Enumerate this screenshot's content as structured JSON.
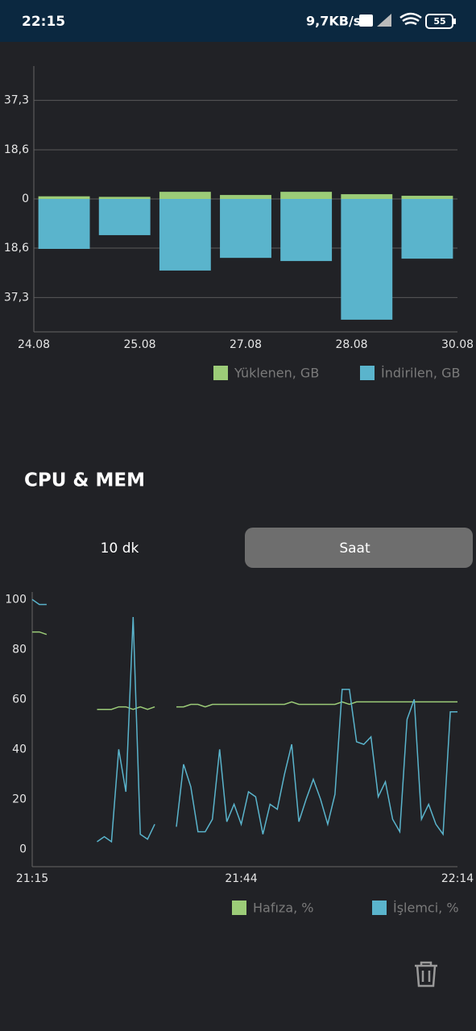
{
  "status_bar": {
    "time": "22:15",
    "speed": "9,7KB/s",
    "battery": "55"
  },
  "section_title": "CPU & MEM",
  "tabs": [
    {
      "label": "10 dk",
      "selected": false
    },
    {
      "label": "Saat",
      "selected": true
    }
  ],
  "chart_data": [
    {
      "type": "bar",
      "stacked": true,
      "x": [
        0,
        1,
        2,
        3,
        4,
        5,
        6
      ],
      "xlim": [
        -0.5,
        6.5
      ],
      "xticks": [
        {
          "value": -0.5,
          "label": "24.08"
        },
        {
          "value": 1.25,
          "label": "25.08"
        },
        {
          "value": 3,
          "label": "27.08"
        },
        {
          "value": 4.75,
          "label": "28.08"
        },
        {
          "value": 6.5,
          "label": "30.08"
        }
      ],
      "ylim": [
        -50.3,
        50.3
      ],
      "yticks": [
        {
          "value": 37.3,
          "label": "37,3"
        },
        {
          "value": 18.6,
          "label": "18,6"
        },
        0,
        {
          "value": -18.6,
          "label": "18,6"
        },
        {
          "value": -37.3,
          "label": "37,3"
        }
      ],
      "grid": true,
      "series": [
        {
          "name": "Yüklenen, GB",
          "color": "#9ccc78",
          "values": [
            1.0,
            0.8,
            2.7,
            1.5,
            2.7,
            1.8,
            1.2
          ]
        },
        {
          "name": "İndirilen, GB",
          "color": "#5ab4cc",
          "values": [
            -18.9,
            -13.7,
            -27.1,
            -22.3,
            -23.5,
            -45.7,
            -22.6
          ]
        }
      ]
    },
    {
      "type": "line",
      "x": [
        0,
        1,
        2,
        3,
        4,
        5,
        6,
        7,
        8,
        9,
        10,
        11,
        12,
        13,
        14,
        15,
        16,
        17,
        18,
        19,
        20,
        21,
        22,
        23,
        24,
        25,
        26,
        27,
        28,
        29,
        30,
        31,
        32,
        33,
        34,
        35,
        36,
        37,
        38,
        39,
        40,
        41,
        42,
        43,
        44,
        45,
        46,
        47,
        48,
        49,
        50,
        51,
        52,
        53,
        54,
        55,
        56,
        57,
        58,
        59
      ],
      "xlim": [
        0,
        59
      ],
      "xticks": [
        {
          "value": 0,
          "label": "21:15"
        },
        {
          "value": 29,
          "label": "21:44"
        },
        {
          "value": 59,
          "label": "22:14"
        }
      ],
      "ylim": [
        -7,
        103
      ],
      "yticks": [
        0,
        20,
        40,
        60,
        80,
        100
      ],
      "grid": false,
      "series": [
        {
          "name": "Hafıza, %",
          "color": "#9ccc78",
          "values": [
            87,
            87,
            86,
            null,
            null,
            null,
            null,
            null,
            null,
            56,
            56,
            56,
            57,
            57,
            56,
            57,
            56,
            57,
            null,
            null,
            57,
            57,
            58,
            58,
            57,
            58,
            58,
            58,
            58,
            58,
            58,
            58,
            58,
            58,
            58,
            58,
            59,
            58,
            58,
            58,
            58,
            58,
            58,
            59,
            58,
            59,
            59,
            59,
            59,
            59,
            59,
            59,
            59,
            59,
            59,
            59,
            59,
            59,
            59,
            59
          ]
        },
        {
          "name": "İşlemci, %",
          "color": "#5ab4cc",
          "values": [
            100,
            98,
            98,
            null,
            null,
            null,
            null,
            null,
            null,
            3,
            5,
            3,
            40,
            23,
            93,
            6,
            4,
            10,
            null,
            null,
            9,
            34,
            25,
            7,
            7,
            12,
            40,
            11,
            18,
            10,
            23,
            21,
            6,
            18,
            16,
            30,
            42,
            11,
            20,
            28,
            20,
            10,
            22,
            64,
            64,
            43,
            42,
            45,
            21,
            27,
            12,
            7,
            52,
            60,
            12,
            18,
            10,
            6,
            55,
            55
          ]
        }
      ]
    }
  ]
}
